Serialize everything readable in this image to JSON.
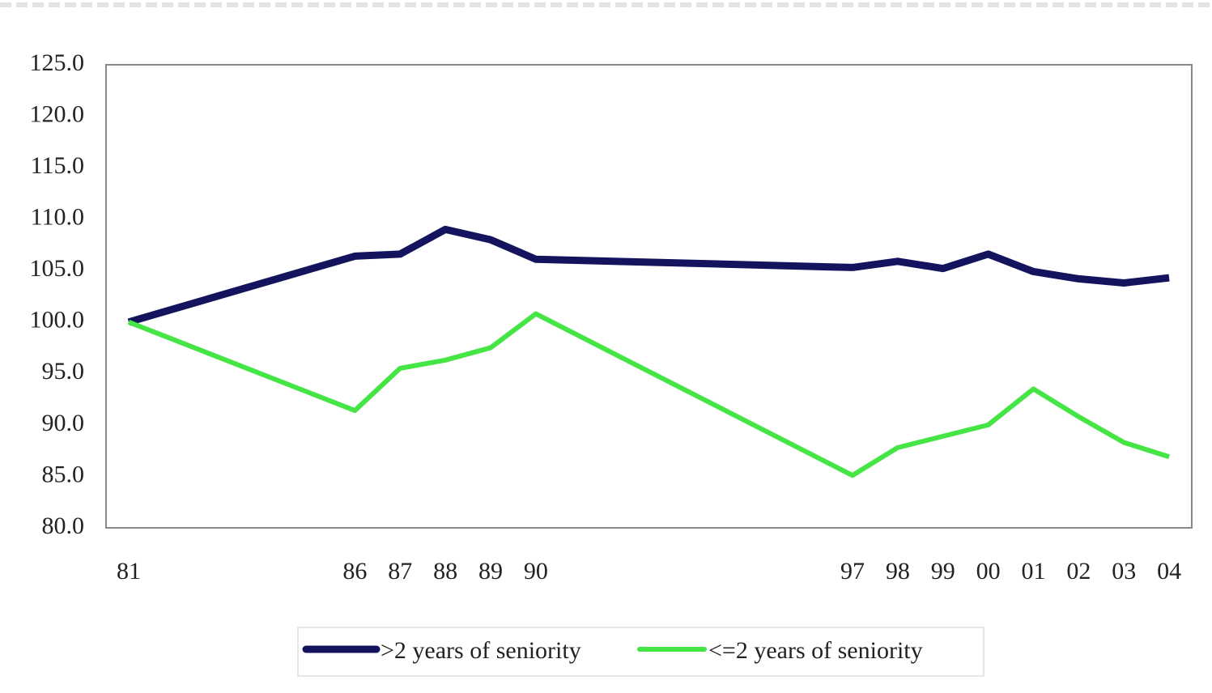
{
  "chart_data": {
    "type": "line",
    "x": [
      1981,
      1986,
      1987,
      1988,
      1989,
      1990,
      1997,
      1998,
      1999,
      2000,
      2001,
      2002,
      2003,
      2004
    ],
    "xlim": [
      1980.5,
      2004.5
    ],
    "xticks": [
      {
        "value": 1981,
        "label": "81"
      },
      {
        "value": 1986,
        "label": "86"
      },
      {
        "value": 1987,
        "label": "87"
      },
      {
        "value": 1988,
        "label": "88"
      },
      {
        "value": 1989,
        "label": "89"
      },
      {
        "value": 1990,
        "label": "90"
      },
      {
        "value": 1997,
        "label": "97"
      },
      {
        "value": 1998,
        "label": "98"
      },
      {
        "value": 1999,
        "label": "99"
      },
      {
        "value": 2000,
        "label": "00"
      },
      {
        "value": 2001,
        "label": "01"
      },
      {
        "value": 2002,
        "label": "02"
      },
      {
        "value": 2003,
        "label": "03"
      },
      {
        "value": 2004,
        "label": "04"
      }
    ],
    "ylim": [
      80,
      125
    ],
    "yticks": [
      {
        "value": 80,
        "label": "80.0"
      },
      {
        "value": 85,
        "label": "85.0"
      },
      {
        "value": 90,
        "label": "90.0"
      },
      {
        "value": 95,
        "label": "95.0"
      },
      {
        "value": 100,
        "label": "100.0"
      },
      {
        "value": 105,
        "label": "105.0"
      },
      {
        "value": 110,
        "label": "110.0"
      },
      {
        "value": 115,
        "label": "115.0"
      },
      {
        "value": 120,
        "label": "120.0"
      },
      {
        "value": 125,
        "label": "125.0"
      }
    ],
    "grid": false,
    "legend": "bottom",
    "series": [
      {
        "name": ">2 years of seniority",
        "color": "#14145e",
        "values": [
          100,
          106.4,
          106.6,
          109.0,
          108.0,
          106.1,
          105.3,
          105.9,
          105.2,
          106.6,
          104.9,
          104.2,
          103.8,
          104.3
        ]
      },
      {
        "name": "<=2 years of seniority",
        "color": "#44e544",
        "values": [
          100,
          91.4,
          95.5,
          96.3,
          97.5,
          100.8,
          85.1,
          87.8,
          88.9,
          90.0,
          93.5,
          90.8,
          88.3,
          86.9
        ]
      }
    ]
  }
}
